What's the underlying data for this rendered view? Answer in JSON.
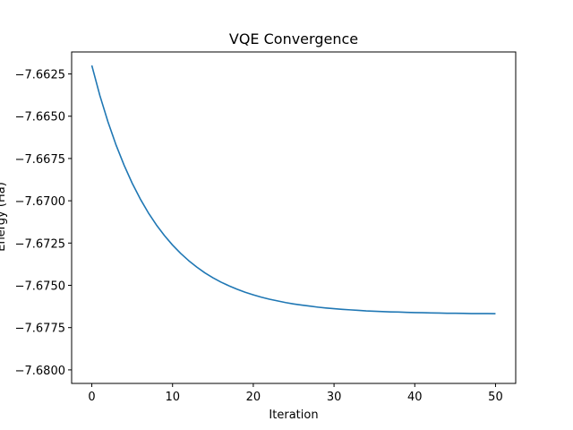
{
  "chart_data": {
    "type": "line",
    "title": "VQE Convergence",
    "xlabel": "Iteration",
    "ylabel": "Energy (Ha)",
    "xlim": [
      -2.5,
      52.5
    ],
    "ylim": [
      -7.6808,
      -7.6612
    ],
    "x_ticks": [
      0,
      10,
      20,
      30,
      40,
      50
    ],
    "x_tick_labels": [
      "0",
      "10",
      "20",
      "30",
      "40",
      "50"
    ],
    "y_ticks": [
      -7.6625,
      -7.665,
      -7.6675,
      -7.67,
      -7.6725,
      -7.675,
      -7.6775,
      -7.68
    ],
    "y_tick_labels": [
      "−7.6625",
      "−7.6650",
      "−7.6675",
      "−7.6700",
      "−7.6725",
      "−7.6750",
      "−7.6775",
      "−7.6800"
    ],
    "grid": false,
    "series": [
      {
        "color": "#1f77b4",
        "x": [
          0,
          1,
          2,
          3,
          4,
          5,
          6,
          7,
          8,
          9,
          10,
          11,
          12,
          13,
          14,
          15,
          16,
          17,
          18,
          19,
          20,
          21,
          22,
          23,
          24,
          25,
          26,
          27,
          28,
          29,
          30,
          31,
          32,
          33,
          34,
          35,
          36,
          37,
          38,
          39,
          40,
          41,
          42,
          43,
          44,
          45,
          46,
          47,
          48,
          49,
          50
        ],
        "y": [
          -7.662,
          -7.66378,
          -7.66533,
          -7.6667,
          -7.6679,
          -7.66896,
          -7.66989,
          -7.67071,
          -7.67143,
          -7.67206,
          -7.67262,
          -7.67311,
          -7.67354,
          -7.67392,
          -7.67426,
          -7.67455,
          -7.67481,
          -7.67503,
          -7.67523,
          -7.67541,
          -7.67556,
          -7.6757,
          -7.67582,
          -7.67592,
          -7.67602,
          -7.6761,
          -7.67617,
          -7.67623,
          -7.67629,
          -7.67634,
          -7.67638,
          -7.67642,
          -7.67645,
          -7.67648,
          -7.67651,
          -7.67653,
          -7.67655,
          -7.67657,
          -7.67658,
          -7.6766,
          -7.67661,
          -7.67662,
          -7.67663,
          -7.67664,
          -7.67665,
          -7.67665,
          -7.67666,
          -7.67667,
          -7.67667,
          -7.67667,
          -7.67668
        ]
      }
    ]
  }
}
